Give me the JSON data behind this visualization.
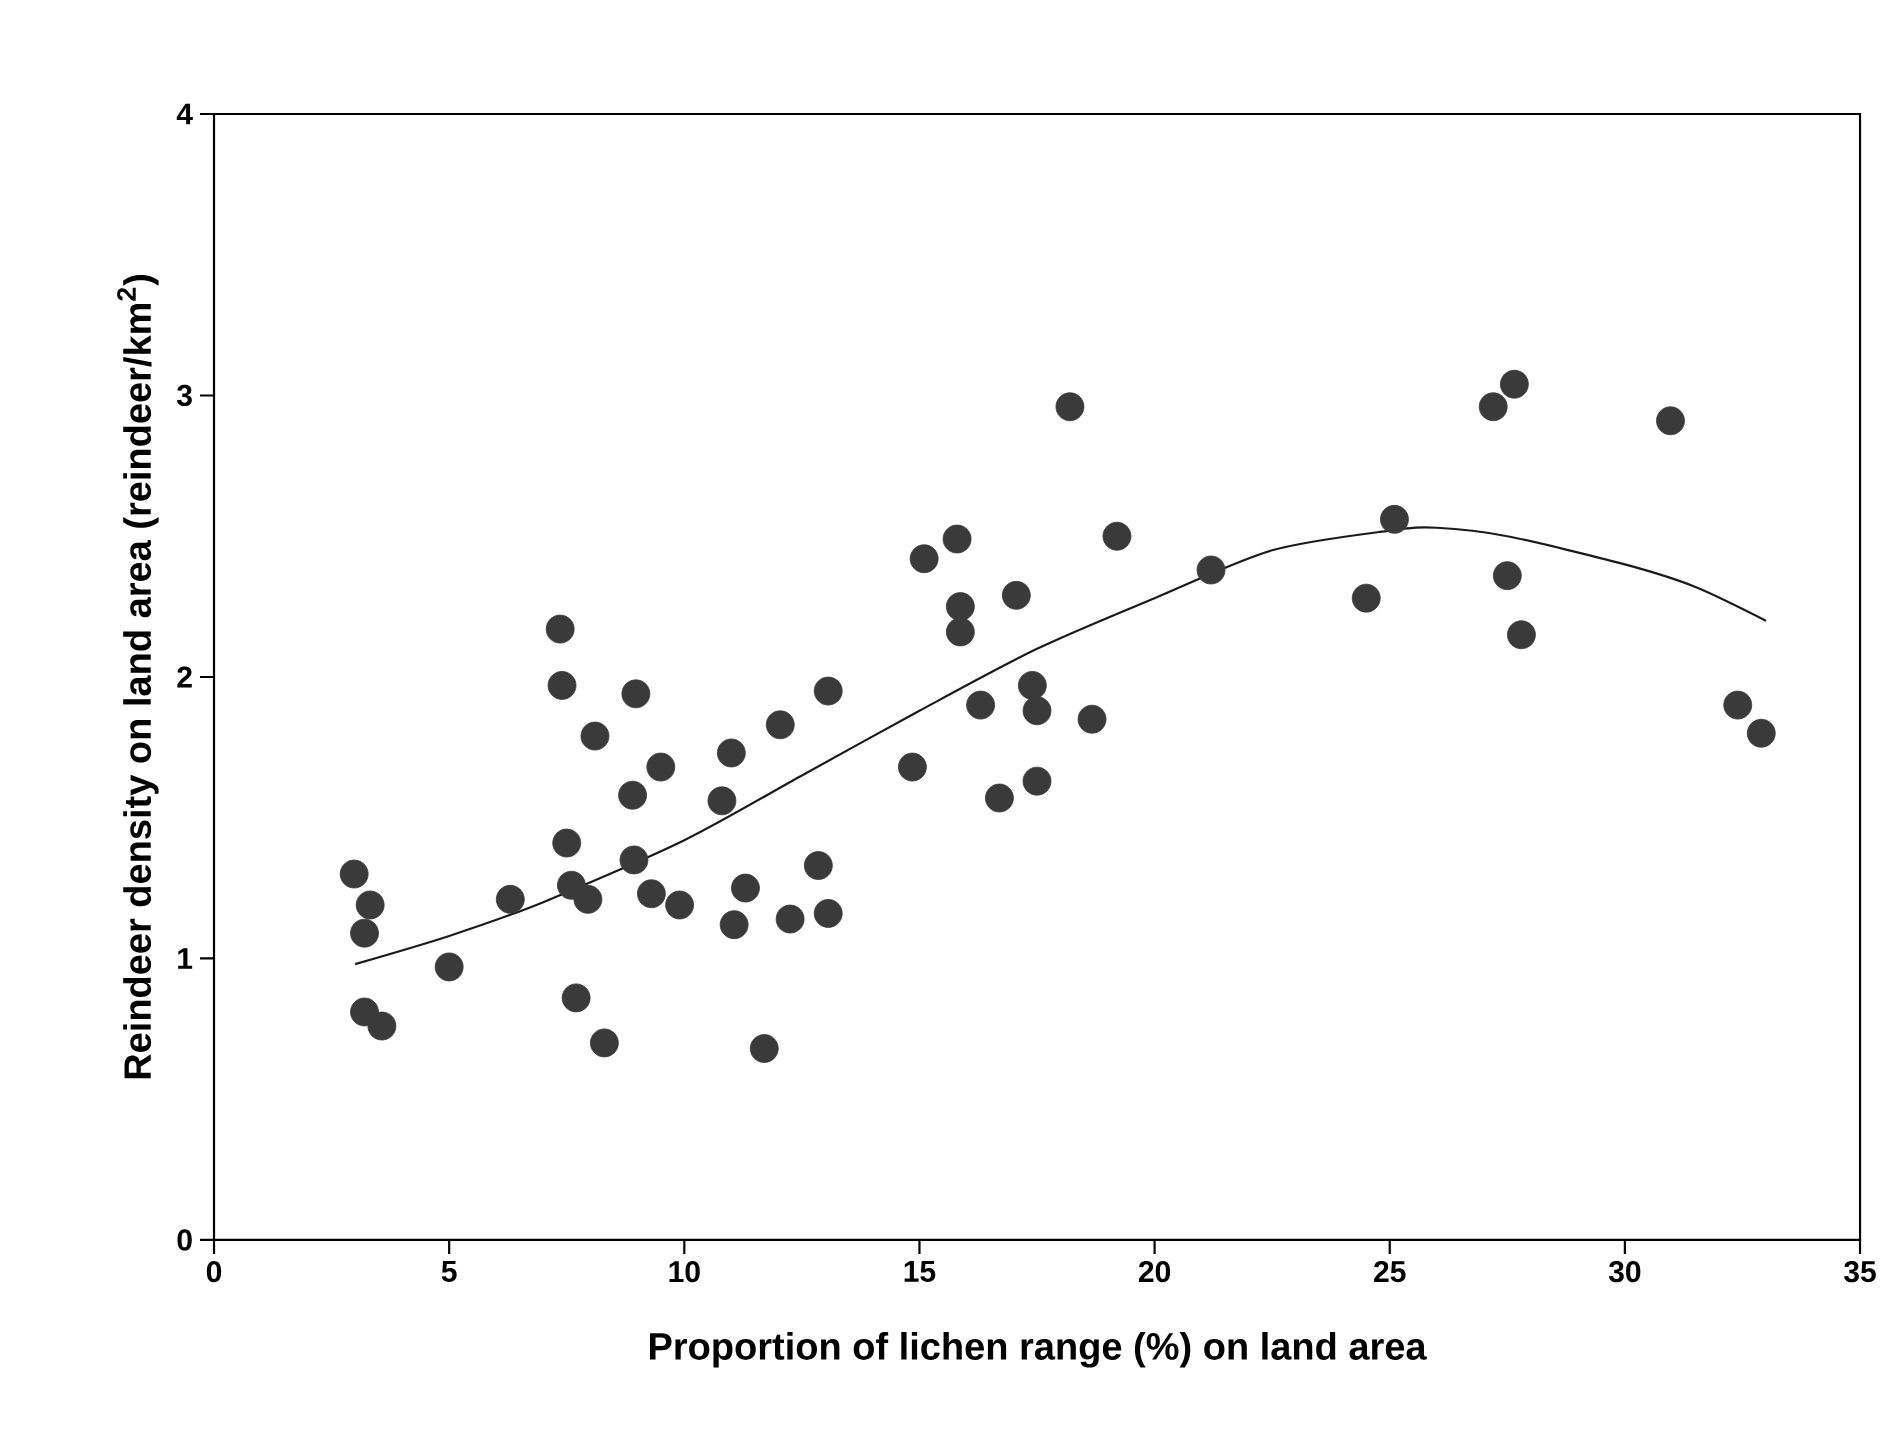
{
  "chart_data": {
    "type": "scatter",
    "xlabel": "Proportion of lichen range (%) on land area",
    "ylabel": "Reindeer density on land area (reindeer/km$^{2}$)",
    "xlim": [
      0,
      35
    ],
    "ylim": [
      0,
      4
    ],
    "xticks": [
      0,
      5,
      10,
      15,
      20,
      25,
      30,
      35
    ],
    "yticks": [
      0,
      1,
      2,
      3,
      4
    ],
    "grid": false,
    "series": [
      {
        "color": "#3a3a3a",
        "marker": "circle",
        "x": [
          2.98,
          3.32,
          3.2,
          3.2,
          3.57,
          5.0,
          6.3,
          7.36,
          7.4,
          7.5,
          7.6,
          7.7,
          7.95,
          8.1,
          8.3,
          8.97,
          8.9,
          8.93,
          9.3,
          9.5,
          9.9,
          10.8,
          11.0,
          11.06,
          11.3,
          11.7,
          12.04,
          12.25,
          12.85,
          13.06,
          13.06,
          14.85,
          15.1,
          15.8,
          15.87,
          15.87,
          16.3,
          16.7,
          17.06,
          17.4,
          17.5,
          17.5,
          18.2,
          18.67,
          19.2,
          21.2,
          24.5,
          25.1,
          27.2,
          27.65,
          27.5,
          27.8,
          30.97,
          32.4,
          32.9
        ],
        "values": [
          1.3,
          1.19,
          1.09,
          0.81,
          0.76,
          0.97,
          1.21,
          2.17,
          1.97,
          1.41,
          1.26,
          0.86,
          1.21,
          1.79,
          0.7,
          1.94,
          1.58,
          1.35,
          1.23,
          1.68,
          1.19,
          1.56,
          1.73,
          1.12,
          1.25,
          0.68,
          1.83,
          1.14,
          1.33,
          1.95,
          1.16,
          1.68,
          2.42,
          2.49,
          2.25,
          2.16,
          1.9,
          1.57,
          2.29,
          1.97,
          1.88,
          1.63,
          2.96,
          1.85,
          2.5,
          2.38,
          2.28,
          2.56,
          2.96,
          3.04,
          2.36,
          2.15,
          2.91,
          1.9,
          1.8
        ]
      },
      {
        "type": "line",
        "color": "#1a1a1a",
        "marker": "none",
        "line_style": "solid",
        "x": [
          3,
          5,
          7,
          10,
          12.5,
          15,
          17.5,
          20,
          22.5,
          25,
          26,
          27.5,
          30,
          31.5,
          33
        ],
        "values": [
          0.98,
          1.08,
          1.2,
          1.42,
          1.65,
          1.88,
          2.1,
          2.28,
          2.45,
          2.52,
          2.53,
          2.5,
          2.4,
          2.32,
          2.2
        ]
      }
    ]
  }
}
